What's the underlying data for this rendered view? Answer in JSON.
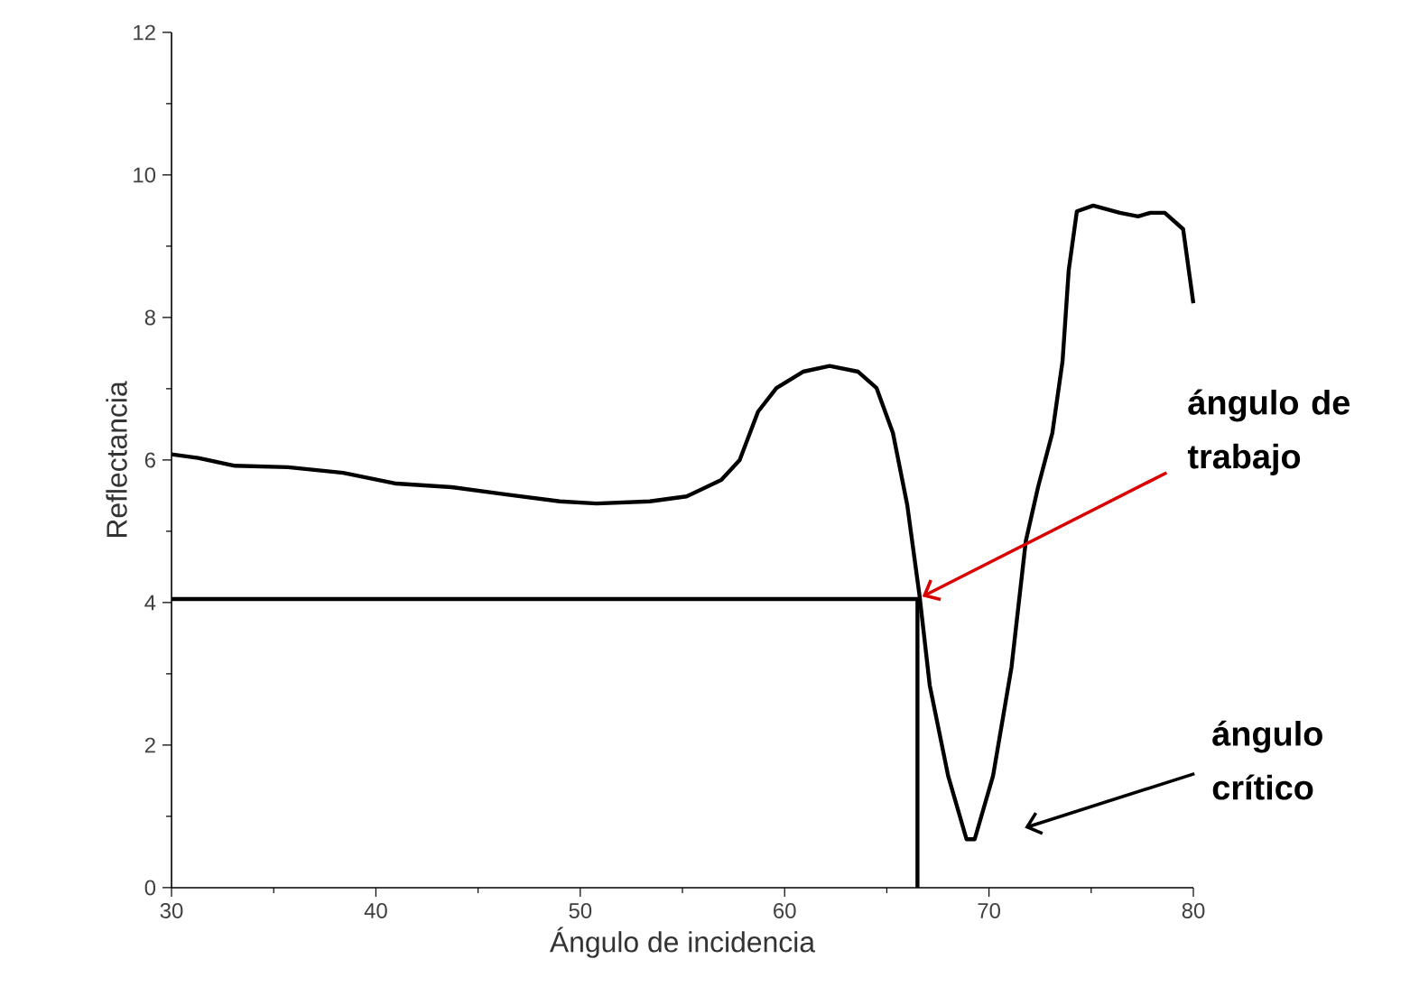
{
  "chart_data": {
    "type": "line",
    "xlabel": "Ángulo de incidencia",
    "ylabel": "Reflectancia",
    "xlim": [
      30,
      80
    ],
    "ylim": [
      0,
      12
    ],
    "xticks": [
      30,
      40,
      50,
      60,
      70,
      80
    ],
    "yticks": [
      0,
      2,
      4,
      6,
      8,
      10,
      12
    ],
    "grid": false,
    "legend": false,
    "marker": "none",
    "line_style": "solid",
    "series": [
      {
        "color": "#000000",
        "x": [
          30,
          31.3,
          33.1,
          35.7,
          38.4,
          41.0,
          43.7,
          46.3,
          49.0,
          50.8,
          53.4,
          55.2,
          56.9,
          57.8,
          58.7,
          59.6,
          60.9,
          62.2,
          63.6,
          64.5,
          65.3,
          66.0,
          66.6,
          67.1,
          68.0,
          68.9,
          69.3,
          70.2,
          71.1,
          71.8,
          72.4,
          73.1,
          73.6,
          73.9,
          74.3,
          75.1,
          76.4,
          77.3,
          77.9,
          78.6,
          79.5,
          80
        ],
        "values": [
          6.08,
          6.03,
          5.92,
          5.9,
          5.82,
          5.67,
          5.62,
          5.52,
          5.42,
          5.39,
          5.42,
          5.49,
          5.72,
          6.0,
          6.68,
          7.01,
          7.24,
          7.32,
          7.24,
          7.01,
          6.38,
          5.37,
          4.1,
          2.84,
          1.57,
          0.68,
          0.68,
          1.57,
          3.09,
          4.86,
          5.62,
          6.38,
          7.39,
          8.66,
          9.49,
          9.57,
          9.47,
          9.42,
          9.47,
          9.47,
          9.24,
          8.2
        ]
      },
      {
        "color": "#000000",
        "x": [
          30,
          66.5,
          66.5
        ],
        "values": [
          4.05,
          4.05,
          0
        ]
      }
    ],
    "annotations": [
      {
        "text": "ángulo de trabajo",
        "x": 66.5,
        "y": 4.05
      },
      "ángulo crítico"
    ]
  }
}
